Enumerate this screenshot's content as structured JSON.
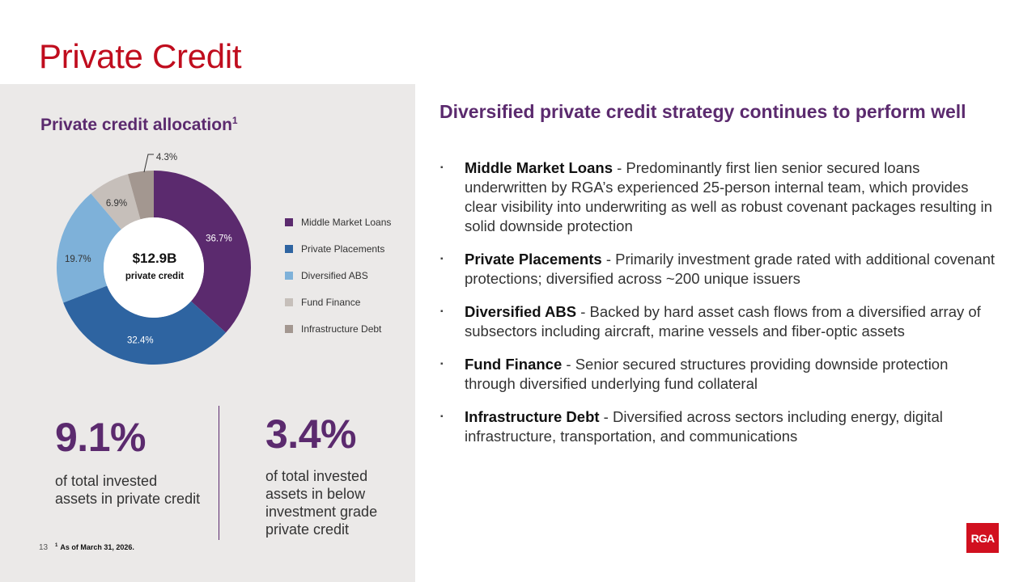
{
  "page": {
    "title": "Private Credit",
    "page_number": "13",
    "footnote_marker": "1",
    "footnote": "As of March 31, 2026.",
    "logo_text": "RGA"
  },
  "allocation": {
    "title": "Private credit allocation",
    "title_superscript": "1",
    "center_value": "$12.9B",
    "center_label": "private credit"
  },
  "chart_data": {
    "type": "pie",
    "donut": true,
    "title": "Private credit allocation",
    "categories": [
      "Middle Market Loans",
      "Private Placements",
      "Diversified ABS",
      "Fund Finance",
      "Infrastructure Debt"
    ],
    "values": [
      36.7,
      32.4,
      19.7,
      6.9,
      4.3
    ],
    "labels": [
      "36.7%",
      "32.4%",
      "19.7%",
      "6.9%",
      "4.3%"
    ],
    "colors": [
      "#5b2a6e",
      "#2e64a1",
      "#7eb1d9",
      "#c6bfba",
      "#a39790"
    ],
    "legend_position": "right"
  },
  "stats": [
    {
      "value": "9.1%",
      "description": "of total invested assets in private credit"
    },
    {
      "value": "3.4%",
      "description": "of total invested assets in below investment grade private credit"
    }
  ],
  "strategy": {
    "heading": "Diversified private credit strategy continues to perform well",
    "bullet_marker": "▪",
    "bullets": [
      {
        "term": "Middle Market Loans",
        "text": " - Predominantly first lien senior secured loans underwritten by RGA’s experienced 25-person internal team, which provides clear visibility into underwriting as well as robust covenant packages resulting in solid downside protection"
      },
      {
        "term": "Private Placements",
        "text": " - Primarily investment grade rated with additional covenant protections; diversified across ~200 unique issuers"
      },
      {
        "term": "Diversified ABS",
        "text": " - Backed by hard asset cash flows from a diversified array of subsectors including aircraft, marine vessels and fiber-optic assets"
      },
      {
        "term": "Fund Finance",
        "text": " - Senior secured structures providing downside protection through diversified underlying fund collateral"
      },
      {
        "term": "Infrastructure Debt",
        "text": " - Diversified across sectors including energy, digital infrastructure, transportation, and communications"
      }
    ]
  }
}
